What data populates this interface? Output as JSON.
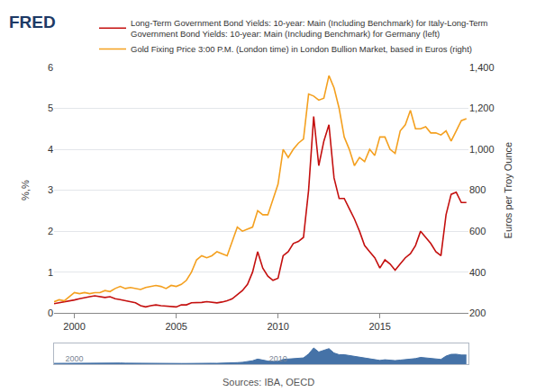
{
  "chart_data": [
    {
      "type": "line",
      "logo": "FRED",
      "source": "Sources: IBA, OECD",
      "y_label": "%,%",
      "y2_label": "Euros per Troy Ounce",
      "legend": "top",
      "grid": true,
      "x": [
        1999,
        1999.25,
        1999.5,
        1999.75,
        2000,
        2000.25,
        2000.5,
        2000.75,
        2001,
        2001.25,
        2001.5,
        2001.75,
        2002,
        2002.25,
        2002.5,
        2002.75,
        2003,
        2003.25,
        2003.5,
        2003.75,
        2004,
        2004.25,
        2004.5,
        2004.75,
        2005,
        2005.25,
        2005.5,
        2005.75,
        2006,
        2006.25,
        2006.5,
        2006.75,
        2007,
        2007.25,
        2007.5,
        2007.75,
        2008,
        2008.25,
        2008.5,
        2008.75,
        2009,
        2009.25,
        2009.5,
        2009.75,
        2010,
        2010.25,
        2010.5,
        2010.75,
        2011,
        2011.25,
        2011.5,
        2011.75,
        2012,
        2012.25,
        2012.5,
        2012.75,
        2013,
        2013.25,
        2013.5,
        2013.75,
        2014,
        2014.25,
        2014.5,
        2014.75,
        2015,
        2015.25,
        2015.5,
        2015.75,
        2016,
        2016.25,
        2016.5,
        2016.75,
        2017,
        2017.25,
        2017.5,
        2017.75,
        2018,
        2018.25,
        2018.5,
        2018.75,
        2019,
        2019.25
      ],
      "xlim": [
        1999,
        2019.35
      ],
      "xticks": [
        2000,
        2005,
        2010,
        2015
      ],
      "ylim": [
        0,
        6
      ],
      "yticks": [
        0,
        1,
        2,
        3,
        4,
        5,
        6
      ],
      "y2lim": [
        200,
        1400
      ],
      "y2ticks": [
        200,
        400,
        600,
        800,
        {
          "value": 1000,
          "label": "1,000"
        },
        {
          "value": 1200,
          "label": "1,200"
        },
        {
          "value": 1400,
          "label": "1,400"
        }
      ],
      "series": [
        {
          "name": "Long-Term Government Bond Yields: 10-year: Main (Including Benchmark) for Italy-Long-Term Government Bond Yields: 10-year: Main (Including Benchmark) for Germany (left)",
          "color": "#c4100f",
          "axis": "y",
          "values": [
            0.23,
            0.25,
            0.28,
            0.3,
            0.32,
            0.35,
            0.38,
            0.4,
            0.42,
            0.4,
            0.38,
            0.4,
            0.35,
            0.33,
            0.3,
            0.28,
            0.25,
            0.18,
            0.15,
            0.18,
            0.2,
            0.18,
            0.17,
            0.15,
            0.15,
            0.2,
            0.2,
            0.25,
            0.25,
            0.26,
            0.28,
            0.27,
            0.25,
            0.27,
            0.3,
            0.35,
            0.45,
            0.55,
            0.7,
            1.0,
            1.5,
            1.1,
            0.9,
            0.8,
            0.85,
            1.4,
            1.5,
            1.7,
            1.75,
            1.85,
            3.0,
            4.8,
            3.6,
            4.2,
            4.6,
            3.3,
            2.8,
            2.8,
            2.55,
            2.3,
            2.0,
            1.65,
            1.5,
            1.35,
            1.1,
            1.3,
            1.2,
            1.05,
            1.2,
            1.35,
            1.45,
            1.65,
            2.0,
            1.85,
            1.7,
            1.5,
            1.4,
            2.4,
            2.9,
            2.95,
            2.7,
            2.7
          ]
        },
        {
          "name": "Gold Fixing Price 3:00 P.M. (London time) in London Bullion Market, based in Euros (right)",
          "color": "#f4a01f",
          "axis": "y2",
          "values": [
            255,
            265,
            260,
            280,
            300,
            295,
            300,
            295,
            300,
            300,
            310,
            305,
            320,
            330,
            320,
            325,
            320,
            315,
            325,
            330,
            335,
            330,
            320,
            335,
            330,
            340,
            360,
            400,
            460,
            480,
            470,
            480,
            500,
            490,
            480,
            550,
            620,
            600,
            610,
            620,
            700,
            680,
            680,
            760,
            830,
            1000,
            960,
            1000,
            1030,
            1050,
            1270,
            1260,
            1240,
            1250,
            1360,
            1300,
            1200,
            1060,
            1000,
            920,
            960,
            940,
            1000,
            970,
            1060,
            1060,
            1000,
            980,
            1090,
            1120,
            1190,
            1100,
            1100,
            1110,
            1080,
            1080,
            1070,
            1090,
            1040,
            1090,
            1140,
            1150
          ]
        }
      ]
    },
    {
      "type": "area",
      "color": "#4572a7",
      "tick_labels": "x",
      "x": [
        1999,
        1999.25,
        1999.5,
        1999.75,
        2000,
        2000.25,
        2000.5,
        2000.75,
        2001,
        2001.25,
        2001.5,
        2001.75,
        2002,
        2002.25,
        2002.5,
        2002.75,
        2003,
        2003.25,
        2003.5,
        2003.75,
        2004,
        2004.25,
        2004.5,
        2004.75,
        2005,
        2005.25,
        2005.5,
        2005.75,
        2006,
        2006.25,
        2006.5,
        2006.75,
        2007,
        2007.25,
        2007.5,
        2007.75,
        2008,
        2008.25,
        2008.5,
        2008.75,
        2009,
        2009.25,
        2009.5,
        2009.75,
        2010,
        2010.25,
        2010.5,
        2010.75,
        2011,
        2011.25,
        2011.5,
        2011.75,
        2012,
        2012.25,
        2012.5,
        2012.75,
        2013,
        2013.25,
        2013.5,
        2013.75,
        2014,
        2014.25,
        2014.5,
        2014.75,
        2015,
        2015.25,
        2015.5,
        2015.75,
        2016,
        2016.25,
        2016.5,
        2016.75,
        2017,
        2017.25,
        2017.5,
        2017.75,
        2018,
        2018.25,
        2018.5,
        2018.75,
        2019,
        2019.25
      ],
      "values": [
        0.23,
        0.25,
        0.28,
        0.3,
        0.32,
        0.35,
        0.38,
        0.4,
        0.42,
        0.4,
        0.38,
        0.4,
        0.35,
        0.33,
        0.3,
        0.28,
        0.25,
        0.18,
        0.15,
        0.18,
        0.2,
        0.18,
        0.17,
        0.15,
        0.15,
        0.2,
        0.2,
        0.25,
        0.25,
        0.26,
        0.28,
        0.27,
        0.25,
        0.27,
        0.3,
        0.35,
        0.45,
        0.55,
        0.7,
        1.0,
        1.5,
        1.1,
        0.9,
        0.8,
        0.85,
        1.4,
        1.5,
        1.7,
        1.75,
        1.85,
        3.0,
        4.8,
        3.6,
        4.2,
        4.6,
        3.3,
        2.8,
        2.8,
        2.55,
        2.3,
        2.0,
        1.65,
        1.5,
        1.35,
        1.1,
        1.3,
        1.2,
        1.05,
        1.2,
        1.35,
        1.45,
        1.65,
        2.0,
        1.85,
        1.7,
        1.5,
        1.4,
        2.4,
        2.9,
        2.95,
        2.7,
        2.7
      ],
      "xlim": [
        1999,
        2019.35
      ],
      "xticks": [
        2000,
        2010
      ],
      "ylim": [
        0,
        6
      ]
    }
  ]
}
